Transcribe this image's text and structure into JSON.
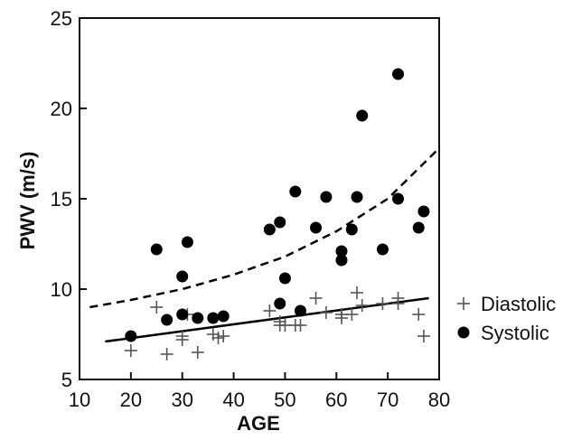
{
  "chart_data": {
    "type": "scatter",
    "title": "",
    "xlabel": "AGE",
    "ylabel": "PWV (m/s)",
    "xlim": [
      10,
      80
    ],
    "ylim": [
      5,
      25
    ],
    "xticks": [
      "10",
      "20",
      "30",
      "40",
      "50",
      "60",
      "70",
      "80"
    ],
    "yticks": [
      "5",
      "10",
      "15",
      "20",
      "25"
    ],
    "grid": false,
    "legend_position": "right",
    "series": [
      {
        "name": "Diastolic",
        "marker": "plus",
        "color": "#555555",
        "points": [
          [
            20,
            6.6
          ],
          [
            25,
            9.0
          ],
          [
            27,
            6.4
          ],
          [
            30,
            7.2
          ],
          [
            30,
            7.4
          ],
          [
            31,
            8.6
          ],
          [
            33,
            6.5
          ],
          [
            36,
            7.5
          ],
          [
            37,
            7.3
          ],
          [
            38,
            7.4
          ],
          [
            47,
            8.8
          ],
          [
            49,
            8.0
          ],
          [
            49,
            8.2
          ],
          [
            50,
            8.0
          ],
          [
            52,
            8.0
          ],
          [
            53,
            8.0
          ],
          [
            56,
            9.5
          ],
          [
            58,
            8.7
          ],
          [
            61,
            8.6
          ],
          [
            61,
            8.4
          ],
          [
            63,
            8.6
          ],
          [
            64,
            9.8
          ],
          [
            65,
            9.1
          ],
          [
            69,
            9.2
          ],
          [
            72,
            9.2
          ],
          [
            72,
            9.5
          ],
          [
            76,
            8.6
          ],
          [
            77,
            7.4
          ]
        ]
      },
      {
        "name": "Systolic",
        "marker": "circle",
        "color": "#000000",
        "points": [
          [
            20,
            7.4
          ],
          [
            25,
            12.2
          ],
          [
            27,
            8.3
          ],
          [
            30,
            8.6
          ],
          [
            30,
            10.7
          ],
          [
            31,
            12.6
          ],
          [
            33,
            8.4
          ],
          [
            36,
            8.4
          ],
          [
            38,
            8.5
          ],
          [
            47,
            13.3
          ],
          [
            49,
            13.7
          ],
          [
            49,
            9.2
          ],
          [
            50,
            10.6
          ],
          [
            52,
            15.4
          ],
          [
            53,
            8.8
          ],
          [
            56,
            13.4
          ],
          [
            58,
            15.1
          ],
          [
            61,
            12.1
          ],
          [
            61,
            11.6
          ],
          [
            63,
            13.3
          ],
          [
            64,
            15.1
          ],
          [
            65,
            19.6
          ],
          [
            69,
            12.2
          ],
          [
            72,
            21.9
          ],
          [
            72,
            15.0
          ],
          [
            76,
            13.4
          ],
          [
            77,
            14.3
          ]
        ]
      }
    ],
    "fits": [
      {
        "series": "Diastolic",
        "style": "solid",
        "x": [
          15,
          78
        ],
        "y": [
          7.1,
          9.5
        ]
      },
      {
        "series": "Systolic",
        "style": "dashed",
        "x": [
          12,
          20,
          30,
          40,
          50,
          60,
          70,
          80
        ],
        "y": [
          9.0,
          9.4,
          10.0,
          10.8,
          11.8,
          13.2,
          15.0,
          17.8
        ]
      }
    ]
  },
  "colors": {
    "axis": "#111111",
    "diastolic_marker": "#555555",
    "systolic_marker": "#000000"
  }
}
